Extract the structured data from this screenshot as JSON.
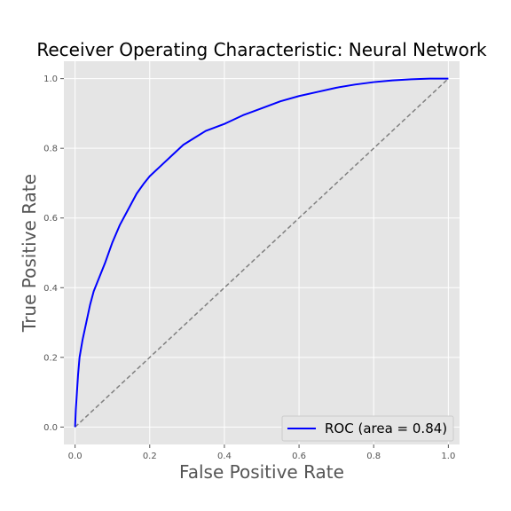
{
  "chart_data": {
    "type": "line",
    "title": "Receiver Operating Characteristic: Neural Network",
    "xlabel": "False Positive Rate",
    "ylabel": "True Positive Rate",
    "xlim": [
      -0.03,
      1.03
    ],
    "ylim": [
      -0.05,
      1.05
    ],
    "grid": true,
    "xticks": [
      "0.0",
      "0.2",
      "0.4",
      "0.6",
      "0.8",
      "1.0"
    ],
    "yticks": [
      "0.0",
      "0.2",
      "0.4",
      "0.6",
      "0.8",
      "1.0"
    ],
    "legend": {
      "position": "lower-right",
      "entries": [
        "ROC (area = 0.84)"
      ]
    },
    "series": [
      {
        "name": "ROC (area = 0.84)",
        "color": "#0000ff",
        "x": [
          0.0,
          0.002,
          0.005,
          0.008,
          0.012,
          0.02,
          0.03,
          0.04,
          0.05,
          0.065,
          0.08,
          0.1,
          0.12,
          0.14,
          0.165,
          0.185,
          0.2,
          0.23,
          0.26,
          0.29,
          0.32,
          0.35,
          0.4,
          0.45,
          0.5,
          0.55,
          0.6,
          0.65,
          0.7,
          0.75,
          0.8,
          0.85,
          0.9,
          0.95,
          1.0
        ],
        "y": [
          0.0,
          0.05,
          0.1,
          0.15,
          0.2,
          0.25,
          0.3,
          0.35,
          0.39,
          0.43,
          0.47,
          0.53,
          0.58,
          0.62,
          0.67,
          0.7,
          0.72,
          0.75,
          0.78,
          0.81,
          0.83,
          0.85,
          0.87,
          0.895,
          0.915,
          0.935,
          0.95,
          0.962,
          0.974,
          0.983,
          0.99,
          0.995,
          0.998,
          1.0,
          1.0
        ]
      },
      {
        "name": "",
        "color": "#808080",
        "style": "dashed",
        "x": [
          0.0,
          1.0
        ],
        "y": [
          0.0,
          1.0
        ]
      }
    ]
  }
}
